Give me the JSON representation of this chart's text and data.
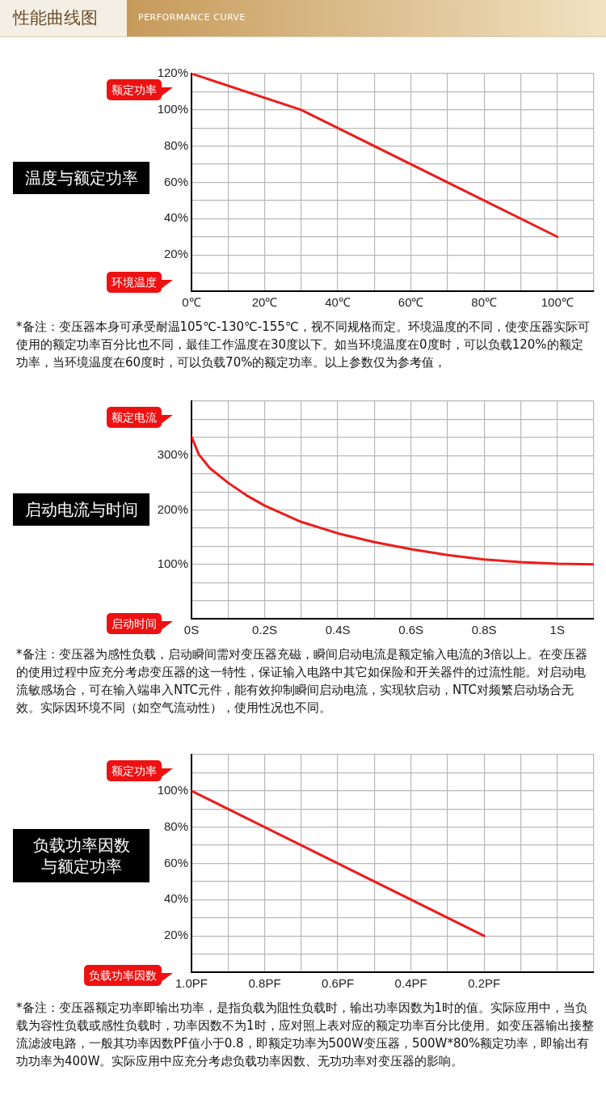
{
  "chart_data": [
    {
      "type": "other",
      "title": "性能曲线图",
      "subtitle": "PERFORMANCE CURVE"
    },
    {
      "type": "line",
      "title": "温度与额定功率",
      "ylabel": "额定功率",
      "xlabel": "环境温度",
      "x": [
        0,
        30,
        100
      ],
      "series": [
        {
          "color": "#ee1c1c",
          "values": [
            120,
            100,
            30
          ]
        }
      ],
      "xlim": [
        0,
        110
      ],
      "xticks": [
        {
          "value": 0,
          "label": "0℃"
        },
        {
          "value": 10,
          "label": null
        },
        {
          "value": 20,
          "label": "20℃"
        },
        {
          "value": 30,
          "label": null
        },
        {
          "value": 40,
          "label": "40℃"
        },
        {
          "value": 50,
          "label": null
        },
        {
          "value": 60,
          "label": "60℃"
        },
        {
          "value": 70,
          "label": null
        },
        {
          "value": 80,
          "label": "80℃"
        },
        {
          "value": 90,
          "label": null
        },
        {
          "value": 100,
          "label": "100℃"
        },
        {
          "value": 110,
          "label": null
        }
      ],
      "ylim": [
        0,
        120
      ],
      "yticks": [
        {
          "value": 0,
          "label": null
        },
        {
          "value": 10,
          "label": null
        },
        {
          "value": 20,
          "label": "20%"
        },
        {
          "value": 30,
          "label": null
        },
        {
          "value": 40,
          "label": "40%"
        },
        {
          "value": 50,
          "label": null
        },
        {
          "value": 60,
          "label": "60%"
        },
        {
          "value": 70,
          "label": null
        },
        {
          "value": 80,
          "label": "80%"
        },
        {
          "value": 90,
          "label": null
        },
        {
          "value": 100,
          "label": "100%"
        },
        {
          "value": 110,
          "label": null
        },
        {
          "value": 120,
          "label": "120%"
        }
      ],
      "grid": true,
      "legend": false,
      "marker": "none",
      "line_style": "solid",
      "annotations": [
        "*备注：变压器本身可承受耐温105℃-130℃-155℃，视不同规格而定。环境温度的不同，使变压器实际可使用的额定功率百分比也不同，最佳工作温度在30度以下。如当环境温度在0度时，可以负载120%的额定功率，当环境温度在60度时，可以负载70%的额定功率。以上参数仅为参考值，"
      ]
    },
    {
      "type": "line",
      "title": "启动电流与时间",
      "ylabel": "额定电流",
      "xlabel": "启动时间",
      "x": [
        0,
        0.02,
        0.05,
        0.1,
        0.15,
        0.2,
        0.3,
        0.4,
        0.5,
        0.6,
        0.7,
        0.8,
        0.9,
        1.0,
        1.1
      ],
      "series": [
        {
          "color": "#ee1c1c",
          "values": [
            335,
            302,
            277,
            250,
            227,
            208,
            178,
            157,
            141,
            128,
            117,
            109,
            104,
            101,
            100
          ]
        }
      ],
      "xlim": [
        0,
        1.1
      ],
      "xticks": [
        {
          "value": 0,
          "label": "0S"
        },
        {
          "value": 0.1,
          "label": null
        },
        {
          "value": 0.2,
          "label": "0.2S"
        },
        {
          "value": 0.3,
          "label": null
        },
        {
          "value": 0.4,
          "label": "0.4S"
        },
        {
          "value": 0.5,
          "label": null
        },
        {
          "value": 0.6,
          "label": "0.6S"
        },
        {
          "value": 0.7,
          "label": null
        },
        {
          "value": 0.8,
          "label": "0.8S"
        },
        {
          "value": 0.9,
          "label": null
        },
        {
          "value": 1.0,
          "label": "1S"
        },
        {
          "value": 1.1,
          "label": null
        }
      ],
      "ylim": [
        0,
        400
      ],
      "yticks": [
        {
          "value": 0,
          "label": null
        },
        {
          "value": 33.3,
          "label": null
        },
        {
          "value": 66.7,
          "label": null
        },
        {
          "value": 100,
          "label": "100%"
        },
        {
          "value": 133.3,
          "label": null
        },
        {
          "value": 166.7,
          "label": null
        },
        {
          "value": 200,
          "label": "200%"
        },
        {
          "value": 233.3,
          "label": null
        },
        {
          "value": 266.7,
          "label": null
        },
        {
          "value": 300,
          "label": "300%"
        },
        {
          "value": 333.3,
          "label": null
        },
        {
          "value": 366.7,
          "label": null
        },
        {
          "value": 400,
          "label": null
        }
      ],
      "grid": true,
      "legend": false,
      "marker": "none",
      "line_style": "solid",
      "annotations": [
        "*备注：变压器为感性负载，启动瞬间需对变压器充磁，瞬间启动电流是额定输入电流的3倍以上。在变压器的使用过程中应充分考虑变压器的这一特性，保证输入电路中其它如保险和开关器件的过流性能。对启动电流敏感场合，可在输入端串入NTC元件，能有效抑制瞬间启动电流，实现软启动，NTC对频繁启动场合无效。实际因环境不同（如空气流动性），使用性况也不同。"
      ]
    },
    {
      "type": "line",
      "title": "负载功率因数与额定功率",
      "ylabel": "额定功率",
      "xlabel": "负载功率因数",
      "x": [
        1.0,
        0.2
      ],
      "series": [
        {
          "color": "#ee1c1c",
          "values": [
            100,
            20
          ]
        }
      ],
      "xlim": [
        1.0,
        -0.1
      ],
      "xticks": [
        {
          "value": 1.0,
          "label": "1.0PF"
        },
        {
          "value": 0.9,
          "label": null
        },
        {
          "value": 0.8,
          "label": "0.8PF"
        },
        {
          "value": 0.7,
          "label": null
        },
        {
          "value": 0.6,
          "label": "0.6PF"
        },
        {
          "value": 0.5,
          "label": null
        },
        {
          "value": 0.4,
          "label": "0.4PF"
        },
        {
          "value": 0.3,
          "label": null
        },
        {
          "value": 0.2,
          "label": "0.2PF"
        },
        {
          "value": 0.1,
          "label": null
        },
        {
          "value": 0,
          "label": null
        },
        {
          "value": -0.1,
          "label": null
        }
      ],
      "ylim": [
        0,
        120
      ],
      "yticks": [
        {
          "value": 0,
          "label": null
        },
        {
          "value": 10,
          "label": null
        },
        {
          "value": 20,
          "label": "20%"
        },
        {
          "value": 30,
          "label": null
        },
        {
          "value": 40,
          "label": "40%"
        },
        {
          "value": 50,
          "label": null
        },
        {
          "value": 60,
          "label": "60%"
        },
        {
          "value": 70,
          "label": null
        },
        {
          "value": 80,
          "label": "80%"
        },
        {
          "value": 90,
          "label": null
        },
        {
          "value": 100,
          "label": "100%"
        },
        {
          "value": 110,
          "label": null
        },
        {
          "value": 120,
          "label": null
        }
      ],
      "grid": true,
      "legend": false,
      "marker": "none",
      "line_style": "solid",
      "annotations": [
        "*备注：变压器额定功率即输出功率，是指负载为阻性负载时，输出功率因数为1时的值。实际应用中，当负载为容性负载或感性负载时，功率因数不为1时，应对照上表对应的额定功率百分比使用。如变压器输出接整流滤波电路，一般其功率因数PF值小于0.8，即额定功率为500W变压器，500W*80%额定功率，即输出有功功率为400W。实际应用中应充分考虑负载功率因数、无功功率对变压器的影响。"
      ]
    }
  ]
}
